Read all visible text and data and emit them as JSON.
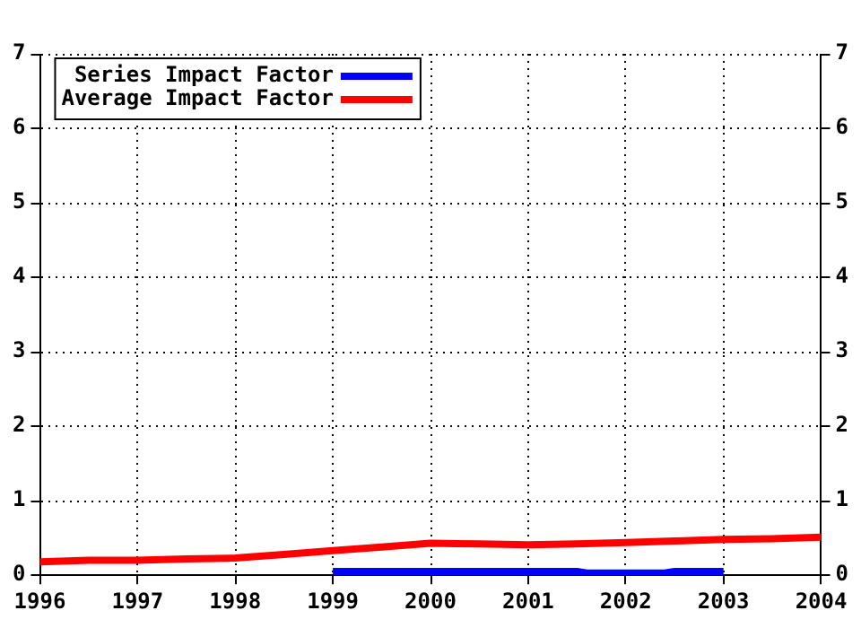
{
  "chart_data": {
    "type": "line",
    "xlim": [
      1996,
      2004
    ],
    "xticks": [
      1996,
      1997,
      1998,
      1999,
      2000,
      2001,
      2002,
      2003,
      2004
    ],
    "ylim": [
      0,
      7
    ],
    "yticks": [
      0,
      1,
      2,
      3,
      4,
      5,
      6,
      7
    ],
    "y2lim": [
      0,
      7
    ],
    "y2ticks": [
      0,
      1,
      2,
      3,
      4,
      5,
      6,
      7
    ],
    "grid": true,
    "legend": "top left",
    "marker": "none",
    "line_style": "solid",
    "series": [
      {
        "name": "Series Impact Factor",
        "color": "#0000ff",
        "x": [
          1999,
          2001.5,
          2001.6,
          2002.4,
          2002.5,
          2003
        ],
        "values": [
          0.05,
          0.05,
          0.03,
          0.03,
          0.05,
          0.05
        ]
      },
      {
        "name": "Average Impact Factor",
        "color": "#ff0000",
        "x": [
          1996,
          1996.5,
          1997,
          1997.5,
          1998,
          1998.5,
          1999,
          1999.5,
          2000,
          2000.5,
          2001,
          2001.5,
          2002,
          2002.5,
          2003,
          2003.5,
          2004
        ],
        "values": [
          0.18,
          0.2,
          0.2,
          0.22,
          0.23,
          0.28,
          0.33,
          0.38,
          0.43,
          0.42,
          0.41,
          0.42,
          0.44,
          0.46,
          0.48,
          0.49,
          0.51
        ]
      }
    ]
  }
}
